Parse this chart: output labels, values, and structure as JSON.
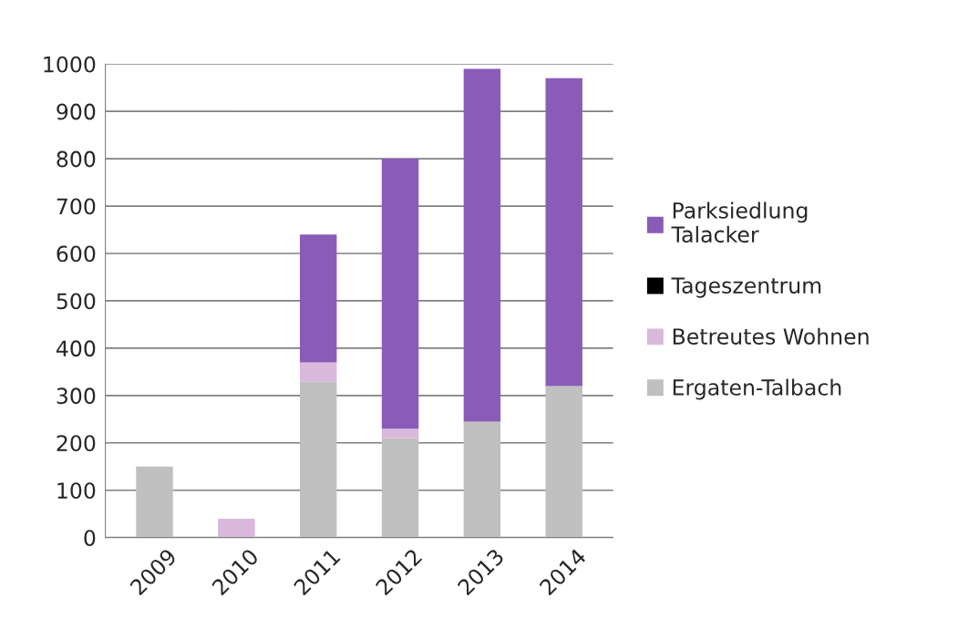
{
  "chart_data": {
    "type": "bar",
    "stacked": true,
    "categories": [
      "2009",
      "2010",
      "2011",
      "2012",
      "2013",
      "2014"
    ],
    "series": [
      {
        "name": "Ergaten-Talbach",
        "color": "#c0c0c0",
        "values": [
          150,
          0,
          330,
          210,
          245,
          320
        ]
      },
      {
        "name": "Betreutes Wohnen",
        "color": "#d9b8dc",
        "values": [
          0,
          40,
          40,
          20,
          0,
          0
        ]
      },
      {
        "name": "Tageszentrum",
        "color": "#000000",
        "values": [
          0,
          0,
          0,
          0,
          0,
          0
        ]
      },
      {
        "name": "Parksiedlung\nTalacker",
        "color": "#8a5cb8",
        "values": [
          0,
          0,
          270,
          570,
          745,
          650
        ]
      }
    ],
    "ylim": [
      0,
      1000
    ],
    "yticks": [
      0,
      100,
      200,
      300,
      400,
      500,
      600,
      700,
      800,
      900,
      1000
    ],
    "grid": "y",
    "legend": "right"
  }
}
